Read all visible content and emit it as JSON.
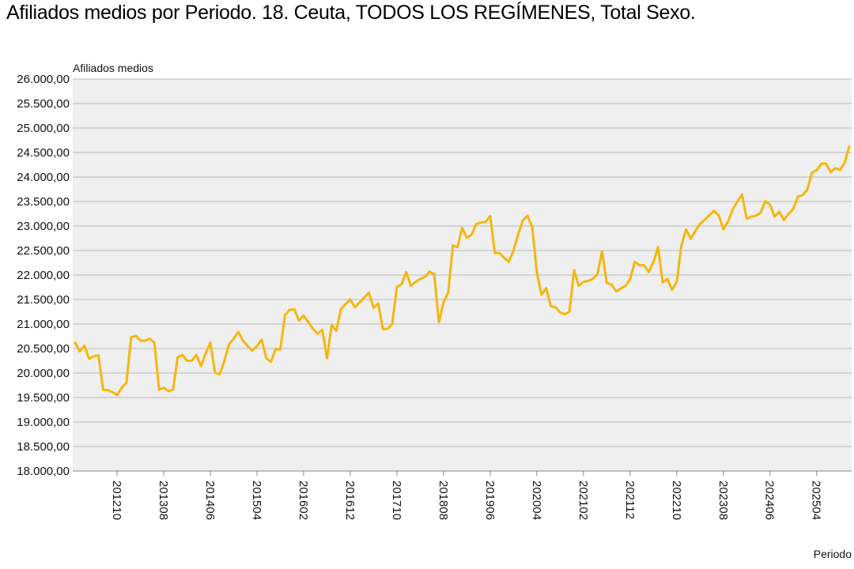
{
  "chart_data": {
    "type": "line",
    "title": "Afiliados medios por Periodo. 18. Ceuta, TODOS LOS REGÍMENES, Total Sexo.",
    "ylabel": "Afiliados medios",
    "xlabel": "Periodo",
    "ylim": [
      18000,
      26000
    ],
    "yticks": [
      "18.000,00",
      "18.500,00",
      "19.000,00",
      "19.500,00",
      "20.000,00",
      "20.500,00",
      "21.000,00",
      "21.500,00",
      "22.000,00",
      "22.500,00",
      "23.000,00",
      "23.500,00",
      "24.000,00",
      "24.500,00",
      "25.000,00",
      "25.500,00",
      "26.000,00"
    ],
    "xticks": [
      "201210",
      "201308",
      "201406",
      "201504",
      "201602",
      "201612",
      "201710",
      "201808",
      "201906",
      "202004",
      "202102",
      "202112",
      "202210",
      "202308",
      "202406",
      "202504"
    ],
    "grid": true,
    "line_color": "#f5b70f",
    "plot_background": "#efefef",
    "x_start": "201201",
    "series": [
      {
        "values": [
          20620,
          20440,
          20560,
          20290,
          20340,
          20360,
          19660,
          19650,
          19610,
          19550,
          19700,
          19800,
          20730,
          20760,
          20660,
          20660,
          20700,
          20620,
          19660,
          19700,
          19630,
          19660,
          20320,
          20370,
          20250,
          20250,
          20370,
          20140,
          20400,
          20620,
          20010,
          19970,
          20240,
          20590,
          20700,
          20840,
          20660,
          20550,
          20460,
          20550,
          20680,
          20300,
          20230,
          20490,
          20480,
          21180,
          21290,
          21300,
          21070,
          21170,
          21040,
          20900,
          20800,
          20880,
          20300,
          20980,
          20860,
          21310,
          21410,
          21500,
          21340,
          21440,
          21540,
          21640,
          21330,
          21420,
          20900,
          20900,
          21000,
          21760,
          21810,
          22060,
          21780,
          21860,
          21920,
          21960,
          22070,
          22020,
          21040,
          21440,
          21640,
          22600,
          22570,
          22960,
          22760,
          22820,
          23040,
          23070,
          23080,
          23200,
          22450,
          22450,
          22350,
          22270,
          22500,
          22830,
          23110,
          23210,
          22980,
          22060,
          21600,
          21730,
          21370,
          21340,
          21240,
          21200,
          21250,
          22100,
          21780,
          21860,
          21880,
          21920,
          22020,
          22480,
          21840,
          21810,
          21670,
          21720,
          21780,
          21910,
          22270,
          22200,
          22200,
          22060,
          22260,
          22570,
          21850,
          21920,
          21700,
          21860,
          22600,
          22930,
          22740,
          22900,
          23040,
          23130,
          23220,
          23310,
          23220,
          22930,
          23090,
          23340,
          23500,
          23640,
          23150,
          23190,
          23210,
          23270,
          23510,
          23440,
          23190,
          23290,
          23120,
          23250,
          23350,
          23600,
          23630,
          23740,
          24090,
          24140,
          24270,
          24280,
          24100,
          24180,
          24140,
          24290,
          24620
        ]
      }
    ]
  }
}
